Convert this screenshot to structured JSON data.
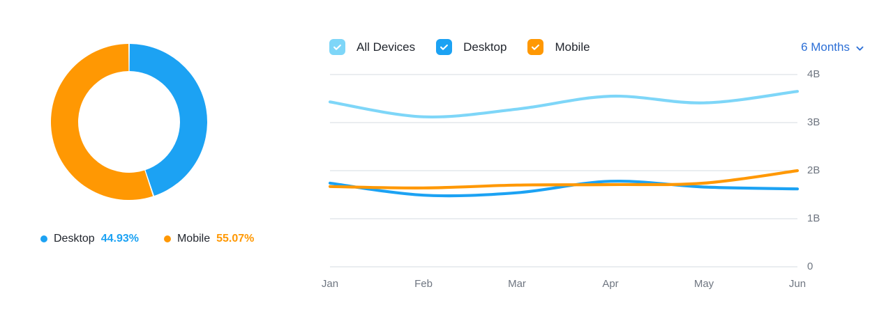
{
  "colors": {
    "all_devices": "#7ED6F8",
    "desktop": "#1CA2F3",
    "mobile": "#FF9803",
    "link_blue": "#2C6FD6",
    "gridline": "#E4E7EB",
    "axis_text": "#6F7681",
    "label_text": "#22262E"
  },
  "donut": {
    "legend": [
      {
        "label": "Desktop",
        "value": "44.93%",
        "color": "#1CA2F3"
      },
      {
        "label": "Mobile",
        "value": "55.07%",
        "color": "#FF9803"
      }
    ]
  },
  "controls": {
    "checkboxes": [
      {
        "label": "All Devices",
        "checked": true,
        "color": "#7ED6F8"
      },
      {
        "label": "Desktop",
        "checked": true,
        "color": "#1CA2F3"
      },
      {
        "label": "Mobile",
        "checked": true,
        "color": "#FF9803"
      }
    ],
    "period_selector": {
      "label": "6 Months",
      "icon": "chevron-down-icon",
      "color": "#2C6FD6"
    }
  },
  "chart_data": [
    {
      "type": "pie",
      "donut": true,
      "labels": [
        "Desktop",
        "Mobile"
      ],
      "values": [
        44.93,
        55.07
      ],
      "colors": [
        "#1CA2F3",
        "#FF9803"
      ],
      "start": "top",
      "direction": "clockwise"
    },
    {
      "type": "line",
      "x": [
        "Jan",
        "Feb",
        "Mar",
        "Apr",
        "May",
        "Jun"
      ],
      "series": [
        {
          "name": "All Devices",
          "color": "#7ED6F8",
          "values": [
            3.43,
            3.12,
            3.28,
            3.55,
            3.41,
            3.65
          ]
        },
        {
          "name": "Desktop",
          "color": "#1CA2F3",
          "values": [
            1.74,
            1.49,
            1.54,
            1.78,
            1.66,
            1.62
          ]
        },
        {
          "name": "Mobile",
          "color": "#FF9803",
          "values": [
            1.67,
            1.64,
            1.7,
            1.71,
            1.74,
            2.0
          ]
        }
      ],
      "ylim": [
        0,
        4
      ],
      "yticks": [
        {
          "value": 0,
          "label": "0"
        },
        {
          "value": 1,
          "label": "1B"
        },
        {
          "value": 2,
          "label": "2B"
        },
        {
          "value": 3,
          "label": "3B"
        },
        {
          "value": 4,
          "label": "4B"
        }
      ],
      "grid": "horizontal",
      "legend_position": "top-checkboxes"
    }
  ]
}
